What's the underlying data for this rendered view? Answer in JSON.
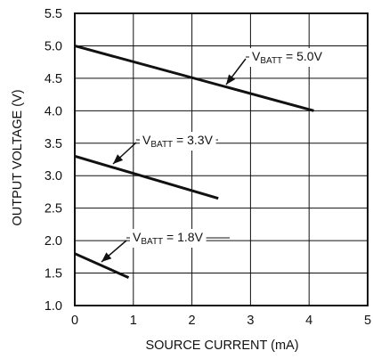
{
  "chart_data": {
    "type": "line",
    "title": "",
    "xlabel": "SOURCE CURRENT (mA)",
    "ylabel": "OUTPUT VOLTAGE (V)",
    "xlim": [
      0,
      5
    ],
    "ylim": [
      1.0,
      5.5
    ],
    "grid": true,
    "legend": "none",
    "x_ticks": [
      0,
      1,
      2,
      3,
      4,
      5
    ],
    "x_tick_labels": [
      "0",
      "1",
      "2",
      "3",
      "4",
      "5"
    ],
    "y_ticks": [
      1.0,
      1.5,
      2.0,
      2.5,
      3.0,
      3.5,
      4.0,
      4.5,
      5.0,
      5.5
    ],
    "y_tick_labels": [
      "1.0",
      "1.5",
      "2.0",
      "2.5",
      "3.0",
      "3.5",
      "4.0",
      "4.5",
      "5.0",
      "5.5"
    ],
    "series": [
      {
        "name": "VBATT = 5.0V",
        "label_main": "V",
        "label_sub": "BATT",
        "label_rest": " = 5.0V",
        "x": [
          0,
          4.08
        ],
        "y": [
          5.0,
          4.0
        ],
        "color": "#111111"
      },
      {
        "name": "VBATT = 3.3V",
        "label_main": "V",
        "label_sub": "BATT",
        "label_rest": " = 3.3V",
        "x": [
          0,
          2.45
        ],
        "y": [
          3.3,
          2.65
        ],
        "color": "#111111"
      },
      {
        "name": "VBATT = 1.8V",
        "label_main": "V",
        "label_sub": "BATT",
        "label_rest": " = 1.8V",
        "x": [
          0,
          0.92
        ],
        "y": [
          1.8,
          1.43
        ],
        "color": "#111111"
      }
    ]
  }
}
